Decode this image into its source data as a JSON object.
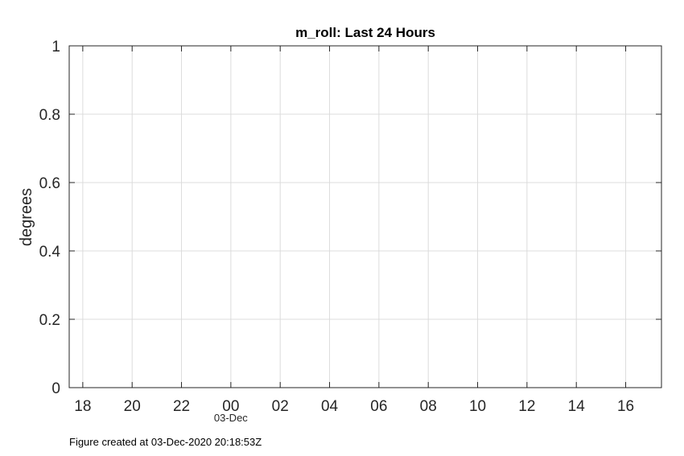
{
  "chart_data": {
    "type": "line",
    "title": "m_roll: Last 24 Hours",
    "xlabel": "",
    "ylabel": "degrees",
    "x_ticks": [
      "18",
      "20",
      "22",
      "00",
      "02",
      "04",
      "06",
      "08",
      "10",
      "12",
      "14",
      "16"
    ],
    "x_tick_hours": [
      18,
      20,
      22,
      24,
      26,
      28,
      30,
      32,
      34,
      36,
      38,
      40
    ],
    "x_date_label": "03-Dec",
    "x_date_label_tick": "00",
    "xlim_hours": [
      17.45,
      41.45
    ],
    "y_ticks": [
      "0",
      "0.2",
      "0.4",
      "0.6",
      "0.8",
      "1"
    ],
    "y_tick_values": [
      0,
      0.2,
      0.4,
      0.6,
      0.8,
      1
    ],
    "ylim": [
      0,
      1
    ],
    "grid": true,
    "series": []
  },
  "footer": {
    "text": "Figure created at 03-Dec-2020 20:18:53Z"
  }
}
